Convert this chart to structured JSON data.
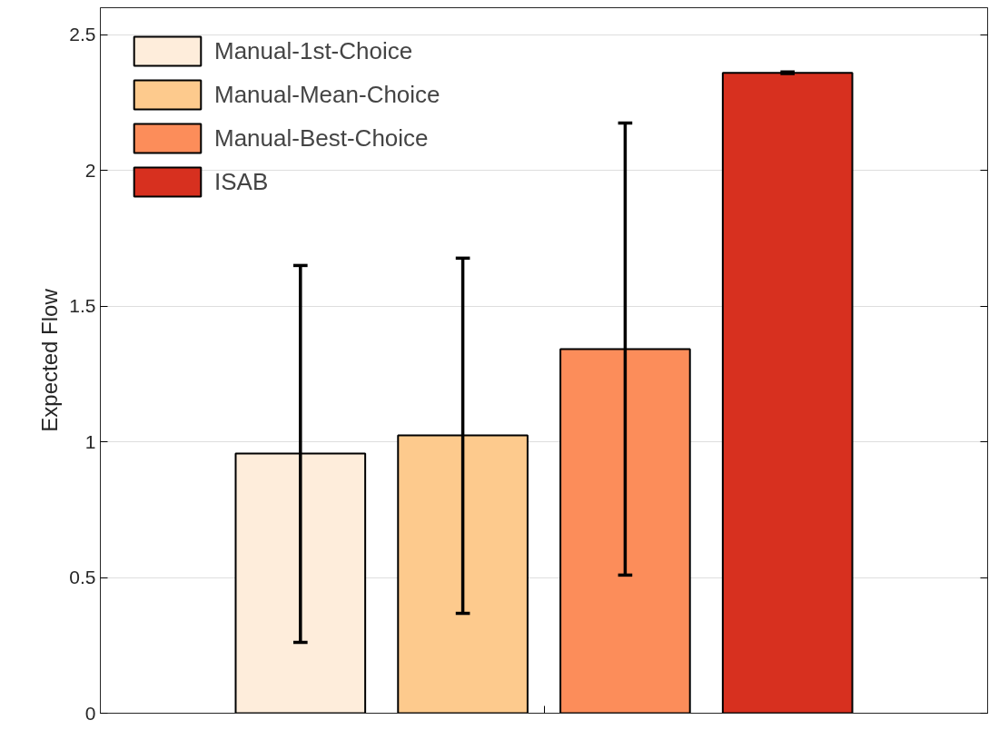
{
  "chart_data": {
    "type": "bar",
    "ylabel": "Expected Flow",
    "categories": [
      null
    ],
    "series": [
      {
        "name": "Manual-1st-Choice",
        "color": "#feeddb",
        "values": [
          0.957
        ],
        "errors": [
          [
            0.261,
            1.65
          ]
        ]
      },
      {
        "name": "Manual-Mean-Choice",
        "color": "#fdca8d",
        "values": [
          1.024
        ],
        "errors": [
          [
            0.368,
            1.677
          ]
        ]
      },
      {
        "name": "Manual-Best-Choice",
        "color": "#fc8d5a",
        "values": [
          1.342
        ],
        "errors": [
          [
            0.509,
            2.175
          ]
        ]
      },
      {
        "name": "ISAB",
        "color": "#d7301f",
        "values": [
          2.36
        ],
        "errors": [
          [
            2.357,
            2.363
          ]
        ]
      }
    ],
    "ylim": [
      0,
      2.6
    ],
    "yticks": [
      0,
      0.5,
      1,
      1.5,
      2,
      2.5
    ],
    "grid": "y",
    "legend": "top left"
  }
}
